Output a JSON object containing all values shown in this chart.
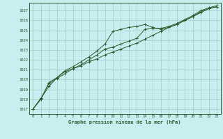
{
  "title": "Graphe pression niveau de la mer (hPa)",
  "bg_color": "#c8eef0",
  "grid_color": "#a8cece",
  "line_color": "#2d5a2d",
  "xlim": [
    -0.5,
    23.5
  ],
  "ylim": [
    1016.5,
    1027.8
  ],
  "yticks": [
    1017,
    1018,
    1019,
    1020,
    1021,
    1022,
    1023,
    1024,
    1025,
    1026,
    1027
  ],
  "xticks": [
    0,
    1,
    2,
    3,
    4,
    5,
    6,
    7,
    8,
    9,
    10,
    11,
    12,
    13,
    14,
    15,
    16,
    17,
    18,
    19,
    20,
    21,
    22,
    23
  ],
  "series1_x": [
    0,
    1,
    2,
    3,
    4,
    5,
    6,
    7,
    8,
    9,
    10,
    11,
    12,
    13,
    14,
    15,
    16,
    17,
    18,
    19,
    20,
    21,
    22,
    23
  ],
  "series1_y": [
    1017.0,
    1018.1,
    1019.3,
    1020.2,
    1020.9,
    1021.3,
    1021.8,
    1022.3,
    1022.9,
    1023.6,
    1024.9,
    1025.1,
    1025.3,
    1025.4,
    1025.6,
    1025.3,
    1025.1,
    1025.3,
    1025.6,
    1026.0,
    1026.4,
    1026.9,
    1027.2,
    1027.4
  ],
  "series2_x": [
    0,
    1,
    2,
    3,
    4,
    5,
    6,
    7,
    8,
    9,
    10,
    11,
    12,
    13,
    14,
    15,
    16,
    17,
    18,
    19,
    20,
    21,
    22,
    23
  ],
  "series2_y": [
    1017.0,
    1018.0,
    1019.7,
    1020.2,
    1020.8,
    1021.1,
    1021.5,
    1022.0,
    1022.5,
    1023.1,
    1023.3,
    1023.6,
    1023.9,
    1024.2,
    1025.1,
    1025.2,
    1025.2,
    1025.4,
    1025.7,
    1026.1,
    1026.5,
    1027.0,
    1027.3,
    1027.5
  ],
  "series3_x": [
    0,
    1,
    2,
    3,
    4,
    5,
    6,
    7,
    8,
    9,
    10,
    11,
    12,
    13,
    14,
    15,
    16,
    17,
    18,
    19,
    20,
    21,
    22,
    23
  ],
  "series3_y": [
    1017.0,
    1018.1,
    1019.6,
    1020.1,
    1020.6,
    1021.1,
    1021.4,
    1021.8,
    1022.1,
    1022.5,
    1022.8,
    1023.1,
    1023.4,
    1023.7,
    1024.1,
    1024.5,
    1024.9,
    1025.3,
    1025.6,
    1026.0,
    1026.4,
    1026.8,
    1027.2,
    1027.4
  ]
}
